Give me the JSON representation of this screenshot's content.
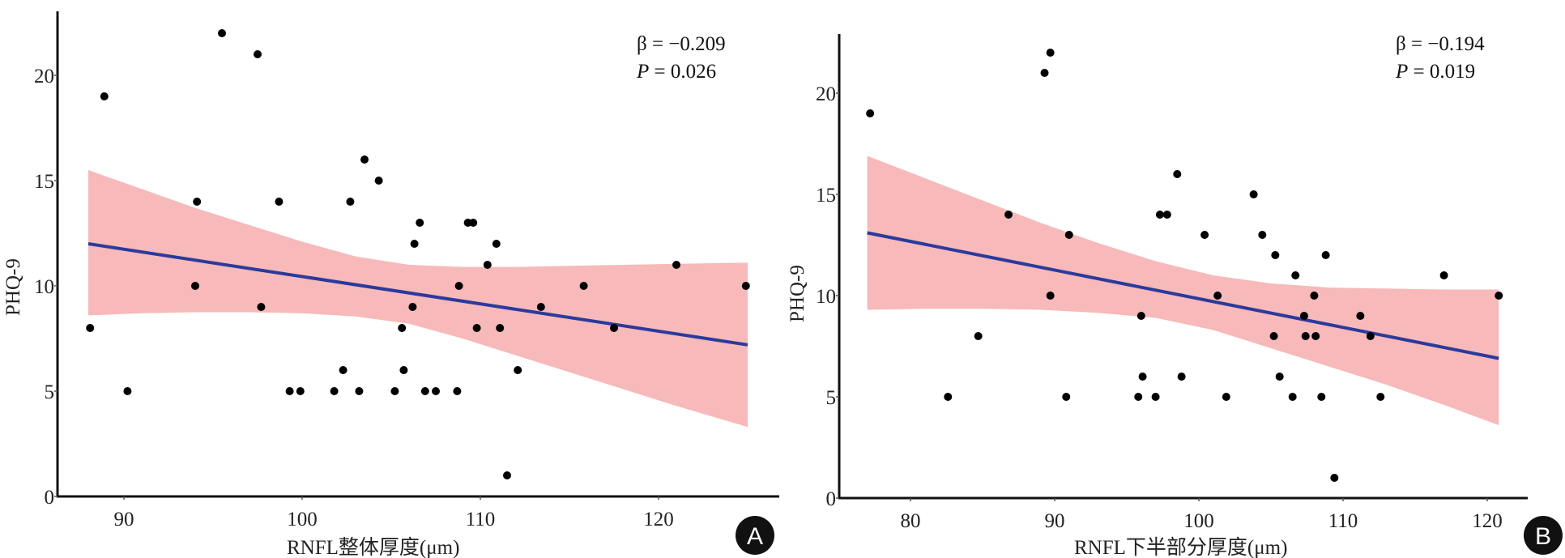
{
  "chart_data": [
    {
      "type": "scatter",
      "panel_label": "A",
      "title": "",
      "xlabel": "RNFL整体厚度(μm)",
      "ylabel": "PHQ-9",
      "xlim": [
        86.5,
        126.5
      ],
      "ylim": [
        0,
        23
      ],
      "xticks": [
        90,
        100,
        110,
        120
      ],
      "yticks": [
        0,
        5,
        10,
        15,
        20
      ],
      "grid": false,
      "annotation": {
        "beta": "β = −0.209",
        "p_prefix": "P",
        "p_value": " = 0.026"
      },
      "points": [
        [
          88.1,
          8
        ],
        [
          88.9,
          19
        ],
        [
          90.2,
          5
        ],
        [
          94.0,
          10
        ],
        [
          94.1,
          14
        ],
        [
          95.5,
          22
        ],
        [
          97.5,
          21
        ],
        [
          97.7,
          9
        ],
        [
          98.7,
          14
        ],
        [
          99.3,
          5
        ],
        [
          99.9,
          5
        ],
        [
          101.8,
          5
        ],
        [
          102.3,
          6
        ],
        [
          102.7,
          14
        ],
        [
          103.2,
          5
        ],
        [
          103.5,
          16
        ],
        [
          104.3,
          15
        ],
        [
          105.2,
          5
        ],
        [
          105.6,
          8
        ],
        [
          105.7,
          6
        ],
        [
          106.2,
          9
        ],
        [
          106.3,
          12
        ],
        [
          106.6,
          13
        ],
        [
          106.9,
          5
        ],
        [
          107.5,
          5
        ],
        [
          108.7,
          5
        ],
        [
          108.8,
          10
        ],
        [
          109.3,
          13
        ],
        [
          109.6,
          13
        ],
        [
          109.8,
          8
        ],
        [
          110.4,
          11
        ],
        [
          110.9,
          12
        ],
        [
          111.1,
          8
        ],
        [
          111.5,
          1
        ],
        [
          112.1,
          6
        ],
        [
          113.4,
          9
        ],
        [
          115.8,
          10
        ],
        [
          117.5,
          8
        ],
        [
          121.0,
          11
        ],
        [
          124.9,
          10
        ]
      ],
      "fit_line": {
        "x": [
          88,
          125
        ],
        "y": [
          12.0,
          7.2
        ],
        "color": "#2b3a9c"
      },
      "ci_band": {
        "color": "#f7b9b9",
        "x": [
          88,
          91,
          94,
          97,
          100,
          103,
          106,
          109,
          112,
          115,
          118,
          121,
          125
        ],
        "upper": [
          15.5,
          14.6,
          13.7,
          12.9,
          12.1,
          11.4,
          11.0,
          10.9,
          10.9,
          10.95,
          11.0,
          11.05,
          11.1
        ],
        "lower": [
          8.6,
          8.7,
          8.75,
          8.75,
          8.7,
          8.55,
          8.2,
          7.5,
          6.7,
          5.9,
          5.1,
          4.3,
          3.3
        ]
      }
    },
    {
      "type": "scatter",
      "panel_label": "B",
      "title": "",
      "xlabel": "RNFL下半部分厚度(μm)",
      "ylabel": "PHQ-9",
      "xlim": [
        75.4,
        123.5
      ],
      "ylim": [
        0,
        23
      ],
      "xticks": [
        80,
        90,
        100,
        110,
        120
      ],
      "yticks": [
        0,
        5,
        10,
        15,
        20
      ],
      "grid": false,
      "annotation": {
        "beta": "β = −0.194",
        "p_prefix": "P",
        "p_value": " = 0.019"
      },
      "points": [
        [
          77.2,
          19
        ],
        [
          82.6,
          5
        ],
        [
          84.7,
          8
        ],
        [
          86.8,
          14
        ],
        [
          89.3,
          21
        ],
        [
          89.7,
          22
        ],
        [
          89.7,
          10
        ],
        [
          90.8,
          5
        ],
        [
          91.0,
          13
        ],
        [
          95.8,
          5
        ],
        [
          96.0,
          9
        ],
        [
          96.1,
          6
        ],
        [
          97.0,
          5
        ],
        [
          97.3,
          14
        ],
        [
          97.8,
          14
        ],
        [
          98.5,
          16
        ],
        [
          98.8,
          6
        ],
        [
          100.4,
          13
        ],
        [
          101.3,
          10
        ],
        [
          101.9,
          5
        ],
        [
          103.8,
          15
        ],
        [
          104.4,
          13
        ],
        [
          105.2,
          8
        ],
        [
          105.3,
          12
        ],
        [
          105.6,
          6
        ],
        [
          106.5,
          5
        ],
        [
          106.7,
          11
        ],
        [
          107.3,
          9
        ],
        [
          107.4,
          8
        ],
        [
          108.0,
          10
        ],
        [
          108.1,
          8
        ],
        [
          108.5,
          5
        ],
        [
          108.8,
          12
        ],
        [
          109.4,
          1
        ],
        [
          111.2,
          9
        ],
        [
          111.9,
          8
        ],
        [
          112.6,
          5
        ],
        [
          117.0,
          11
        ],
        [
          120.8,
          10
        ]
      ],
      "fit_line": {
        "x": [
          77,
          120.8
        ],
        "y": [
          13.1,
          6.9
        ],
        "color": "#2b3a9c"
      },
      "ci_band": {
        "color": "#f7b9b9",
        "x": [
          77,
          81,
          85,
          89,
          93,
          97,
          101,
          105,
          109,
          113,
          117,
          120.8
        ],
        "upper": [
          16.9,
          15.8,
          14.7,
          13.6,
          12.6,
          11.7,
          11.0,
          10.6,
          10.4,
          10.35,
          10.3,
          10.3
        ],
        "lower": [
          9.3,
          9.35,
          9.35,
          9.3,
          9.15,
          8.9,
          8.3,
          7.4,
          6.5,
          5.6,
          4.6,
          3.6
        ]
      }
    }
  ]
}
